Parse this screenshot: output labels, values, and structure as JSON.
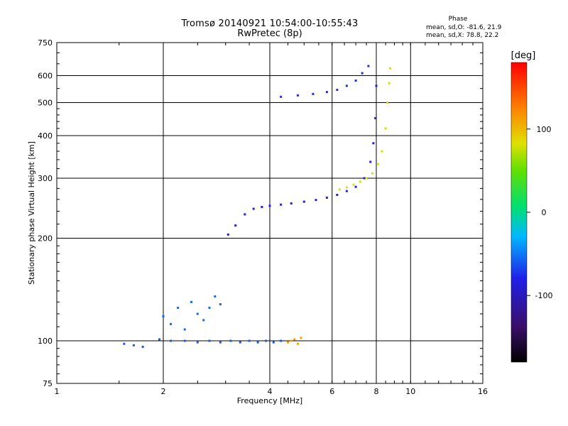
{
  "header": {
    "title_line1": "Tromsø 20140921 10:54:00-10:55:43",
    "title_line2": "RwPretec (8p)",
    "phase_title": "Phase",
    "phase_line1": "mean, sd,O: -81.6, 21.9",
    "phase_line2": "mean, sd,X: 78.8, 22.2"
  },
  "chart_data": {
    "type": "scatter",
    "xlabel": "Frequency [MHz]",
    "ylabel": "Stationary phase Virtual Height [km]",
    "xscale": "log",
    "yscale": "log",
    "xlim": [
      1,
      16
    ],
    "ylim": [
      75,
      750
    ],
    "x_ticks": [
      1,
      2,
      4,
      6,
      8,
      10,
      16
    ],
    "x_tick_labels": [
      "1",
      "2",
      "4",
      "6",
      "8",
      "10",
      "16"
    ],
    "y_ticks": [
      75,
      100,
      200,
      300,
      400,
      500,
      600,
      750
    ],
    "y_tick_labels": [
      "75",
      "100",
      "200",
      "300",
      "400",
      "500",
      "600",
      "750"
    ],
    "grid": true,
    "colorbar": {
      "label": "[deg]",
      "range": [
        -180,
        180
      ],
      "ticks": [
        100,
        0,
        -100
      ],
      "tick_labels": [
        "100",
        "0",
        "-100"
      ]
    },
    "series": [
      {
        "role": "E-layer trace",
        "phase_deg": -60,
        "x": [
          1.55,
          1.65,
          1.75,
          1.95,
          2.1,
          2.3,
          2.5,
          2.7,
          2.9,
          3.1,
          3.3,
          3.5,
          3.7,
          3.9,
          4.1,
          4.3
        ],
        "y": [
          98,
          97,
          96,
          101,
          100,
          100,
          99,
          100,
          99,
          100,
          99,
          100,
          99,
          100,
          99,
          100
        ]
      },
      {
        "role": "E-layer extraordinary",
        "phase_deg": 110,
        "x": [
          4.5,
          4.6,
          4.7,
          4.8,
          4.9
        ],
        "y": [
          99,
          100,
          101,
          98,
          102
        ]
      },
      {
        "role": "Sporadic scatter",
        "phase_deg": -55,
        "x": [
          2.0,
          2.1,
          2.2,
          2.3,
          2.4,
          2.5,
          2.6,
          2.7,
          2.8,
          2.9
        ],
        "y": [
          118,
          112,
          125,
          108,
          130,
          120,
          115,
          125,
          135,
          128
        ]
      },
      {
        "role": "F-layer O-mode",
        "phase_deg": -85,
        "x": [
          3.05,
          3.2,
          3.4,
          3.6,
          3.8,
          4.0,
          4.3,
          4.6,
          5.0,
          5.4,
          5.8,
          6.2,
          6.6,
          7.0,
          7.4,
          7.7,
          7.85,
          7.95,
          8.0
        ],
        "y": [
          205,
          218,
          235,
          244,
          247,
          249,
          251,
          253,
          256,
          259,
          263,
          268,
          275,
          283,
          300,
          335,
          380,
          450,
          560
        ]
      },
      {
        "role": "F-layer X-mode",
        "phase_deg": 80,
        "x": [
          6.3,
          6.6,
          6.9,
          7.2,
          7.5,
          7.8,
          8.1,
          8.3,
          8.5,
          8.6,
          8.7,
          8.75
        ],
        "y": [
          278,
          282,
          287,
          293,
          300,
          310,
          330,
          360,
          420,
          500,
          570,
          630
        ]
      },
      {
        "role": "Upper branch",
        "phase_deg": -75,
        "x": [
          4.3,
          4.8,
          5.3,
          5.8,
          6.2,
          6.6,
          7.0,
          7.3,
          7.6
        ],
        "y": [
          520,
          525,
          530,
          537,
          545,
          560,
          580,
          610,
          640
        ]
      }
    ]
  }
}
